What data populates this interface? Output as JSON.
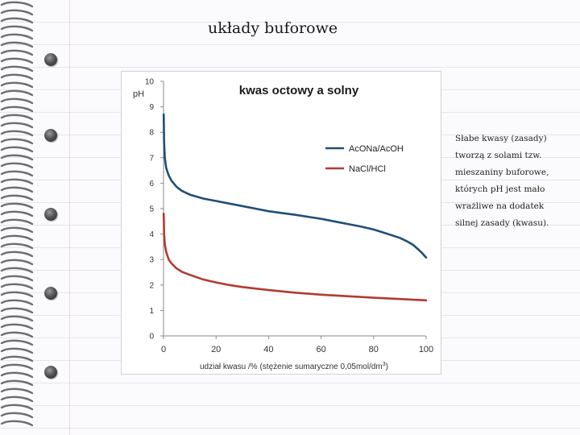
{
  "slide": {
    "title": "układy buforowe",
    "description": "Słabe kwasy (zasady) tworzą z solami tzw. mieszaniny buforowe, których pH jest mało wrażliwe na dodatek silnej zasady (kwasu)."
  },
  "chart_data": {
    "type": "line",
    "title": "kwas octowy a solny",
    "ylabel": "pH",
    "xlabel": "udział kwasu /% (stężenie sumaryczne 0,05mol/dm3)",
    "xlabel_main": "udział kwasu /% (stężenie sumaryczne 0,05mol/dm",
    "xlabel_sup": "3",
    "xlabel_end": ")",
    "xlim": [
      0,
      100
    ],
    "ylim": [
      0,
      10
    ],
    "x_ticks": [
      "0",
      "20",
      "40",
      "60",
      "80",
      "100"
    ],
    "y_ticks": [
      "0",
      "1",
      "2",
      "3",
      "4",
      "5",
      "6",
      "7",
      "8",
      "9",
      "10"
    ],
    "grid": false,
    "legend_position": "upper-right",
    "series": [
      {
        "name": "AcONa/AcOH",
        "color": "#1f4e79",
        "x": [
          0.05,
          0.2,
          0.5,
          1,
          2,
          3,
          5,
          7,
          10,
          15,
          20,
          25,
          30,
          35,
          40,
          45,
          50,
          55,
          60,
          65,
          70,
          75,
          80,
          85,
          90,
          93,
          95,
          97,
          98.5,
          100
        ],
        "y": [
          8.7,
          7.6,
          7.0,
          6.6,
          6.3,
          6.1,
          5.85,
          5.7,
          5.55,
          5.4,
          5.3,
          5.2,
          5.1,
          5.0,
          4.9,
          4.83,
          4.76,
          4.68,
          4.6,
          4.5,
          4.4,
          4.3,
          4.18,
          4.02,
          3.85,
          3.7,
          3.58,
          3.4,
          3.25,
          3.08
        ]
      },
      {
        "name": "NaCl/HCl",
        "color": "#b33a32",
        "x": [
          0.05,
          0.2,
          0.5,
          1,
          2,
          3,
          5,
          7,
          10,
          15,
          20,
          25,
          30,
          40,
          50,
          60,
          70,
          80,
          90,
          100
        ],
        "y": [
          4.8,
          4.0,
          3.6,
          3.3,
          3.0,
          2.85,
          2.65,
          2.52,
          2.4,
          2.22,
          2.1,
          2.0,
          1.92,
          1.8,
          1.7,
          1.62,
          1.56,
          1.5,
          1.45,
          1.4
        ]
      }
    ]
  }
}
